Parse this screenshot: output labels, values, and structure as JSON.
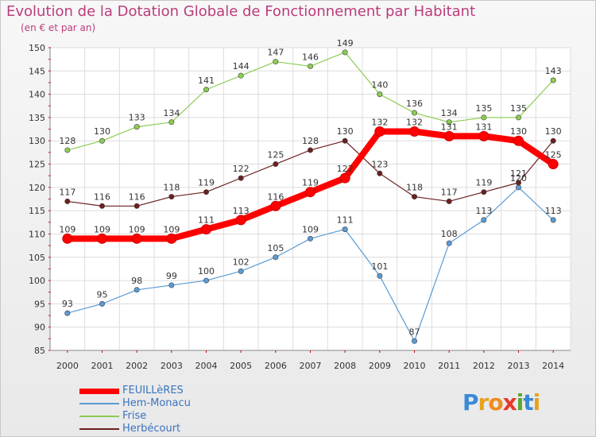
{
  "title": "Evolution de la Dotation Globale de Fonctionnement par Habitant",
  "subtitle": "(en € et par an)",
  "logo": "Proxiti",
  "chart_data": {
    "type": "line",
    "x": [
      2000,
      2001,
      2002,
      2003,
      2004,
      2005,
      2006,
      2007,
      2008,
      2009,
      2010,
      2011,
      2012,
      2013,
      2014
    ],
    "ylim": [
      85,
      150
    ],
    "yticks": [
      85,
      90,
      95,
      100,
      105,
      110,
      115,
      120,
      125,
      130,
      135,
      140,
      145,
      150
    ],
    "grid": true,
    "legend_position": "bottom-left",
    "series": [
      {
        "name": "FEUILLèRES",
        "color": "#ff0000",
        "values": [
          109,
          109,
          109,
          109,
          111,
          113,
          116,
          119,
          122,
          132,
          132,
          131,
          131,
          130,
          125
        ]
      },
      {
        "name": "Hem-Monacu",
        "color": "#5a9bd4",
        "values": [
          93,
          95,
          98,
          99,
          100,
          102,
          105,
          109,
          111,
          101,
          87,
          108,
          113,
          120,
          113
        ]
      },
      {
        "name": "Frise",
        "color": "#8ccc52",
        "values": [
          128,
          130,
          133,
          134,
          141,
          144,
          147,
          146,
          149,
          140,
          136,
          134,
          135,
          135,
          143
        ]
      },
      {
        "name": "Herbécourt",
        "color": "#6b1f1f",
        "values": [
          117,
          116,
          116,
          118,
          119,
          122,
          125,
          128,
          130,
          123,
          118,
          117,
          119,
          121,
          130
        ]
      }
    ]
  }
}
